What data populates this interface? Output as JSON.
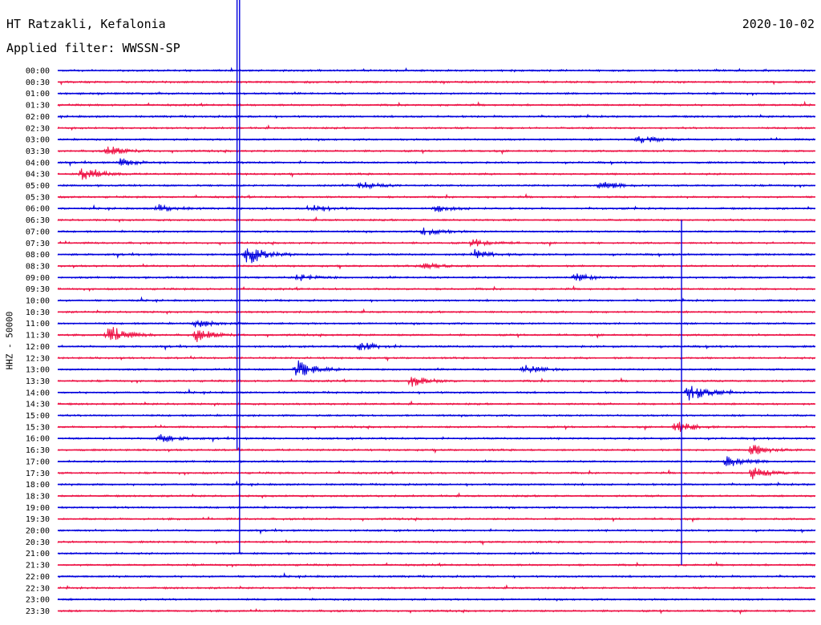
{
  "header": {
    "station": "HT Ratzakli, Kefalonia",
    "filter": "Applied filter: WWSSN-SP",
    "date": "2020-10-02"
  },
  "chart_data": {
    "type": "line",
    "title": "HT Ratzakli, Kefalonia",
    "ylabel": "HHZ - 50000",
    "row_labels": [
      "00:00",
      "00:30",
      "01:00",
      "01:30",
      "02:00",
      "02:30",
      "03:00",
      "03:30",
      "04:00",
      "04:30",
      "05:00",
      "05:30",
      "06:00",
      "06:30",
      "07:00",
      "07:30",
      "08:00",
      "08:30",
      "09:00",
      "09:30",
      "10:00",
      "10:30",
      "11:00",
      "11:30",
      "12:00",
      "12:30",
      "13:00",
      "13:30",
      "14:00",
      "14:30",
      "15:00",
      "15:30",
      "16:00",
      "16:30",
      "17:00",
      "17:30",
      "18:00",
      "18:30",
      "19:00",
      "19:30",
      "20:00",
      "20:30",
      "21:00",
      "21:30",
      "22:00",
      "22:30",
      "23:00",
      "23:30"
    ],
    "row_minutes": 30,
    "series_colors": [
      "#0000dd",
      "#ee1144"
    ],
    "events": [
      {
        "row": 16,
        "minute": 7.5,
        "amplitude": 14
      },
      {
        "row": 23,
        "minute": 2,
        "amplitude": 14
      },
      {
        "row": 26,
        "minute": 9.5,
        "amplitude": 12
      },
      {
        "row": 28,
        "minute": 25,
        "amplitude": 12
      },
      {
        "row": 31,
        "minute": 24.5,
        "amplitude": 8
      },
      {
        "row": 34,
        "minute": 26.5,
        "amplitude": 8
      },
      {
        "row": 6,
        "minute": 23,
        "amplitude": 6
      },
      {
        "row": 7,
        "minute": 2,
        "amplitude": 6
      },
      {
        "row": 12,
        "minute": 4,
        "amplitude": 5
      },
      {
        "row": 9,
        "minute": 1,
        "amplitude": 9
      },
      {
        "row": 8,
        "minute": 2.5,
        "amplitude": 5
      },
      {
        "row": 10,
        "minute": 12,
        "amplitude": 5
      },
      {
        "row": 10,
        "minute": 21.5,
        "amplitude": 6
      },
      {
        "row": 12,
        "minute": 10,
        "amplitude": 6
      },
      {
        "row": 12,
        "minute": 15,
        "amplitude": 4
      },
      {
        "row": 14,
        "minute": 14.5,
        "amplitude": 6
      },
      {
        "row": 15,
        "minute": 16.5,
        "amplitude": 5
      },
      {
        "row": 16,
        "minute": 16.5,
        "amplitude": 6
      },
      {
        "row": 17,
        "minute": 14.5,
        "amplitude": 5
      },
      {
        "row": 18,
        "minute": 9.5,
        "amplitude": 5
      },
      {
        "row": 18,
        "minute": 20.5,
        "amplitude": 5
      },
      {
        "row": 22,
        "minute": 5.5,
        "amplitude": 5
      },
      {
        "row": 23,
        "minute": 5.5,
        "amplitude": 8
      },
      {
        "row": 24,
        "minute": 12,
        "amplitude": 6
      },
      {
        "row": 26,
        "minute": 18.5,
        "amplitude": 6
      },
      {
        "row": 27,
        "minute": 14,
        "amplitude": 7
      },
      {
        "row": 32,
        "minute": 4,
        "amplitude": 6
      },
      {
        "row": 33,
        "minute": 27.5,
        "amplitude": 7
      },
      {
        "row": 35,
        "minute": 27.5,
        "amplitude": 8
      }
    ],
    "vertical_spikes": [
      {
        "minute_row0": 7.1,
        "from_row": 0,
        "to_row": 33
      },
      {
        "minute_row0": 7.2,
        "from_row": 0,
        "to_row": 42
      },
      {
        "minute_row0": 24.7,
        "from_row": 13,
        "to_row": 43
      }
    ]
  }
}
